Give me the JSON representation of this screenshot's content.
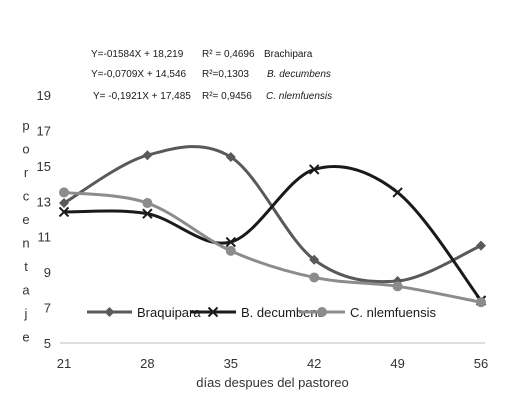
{
  "chart_data": {
    "type": "line",
    "title": "",
    "xlabel": "días despues del pastoreo",
    "ylabel": "porcentaje",
    "x": [
      21,
      28,
      35,
      42,
      49,
      56
    ],
    "ylim": [
      5,
      19
    ],
    "yticks": [
      5,
      7,
      9,
      11,
      13,
      15,
      17,
      19
    ],
    "grid": false,
    "smoothed": true,
    "legend_position": "bottom",
    "series": [
      {
        "name": "Braquipara",
        "values": [
          12.9,
          15.6,
          15.5,
          9.7,
          8.5,
          10.5
        ],
        "color": "#595959",
        "marker": "diamond"
      },
      {
        "name": "B. decumbens",
        "values": [
          12.4,
          12.3,
          10.7,
          14.8,
          13.5,
          7.4
        ],
        "color": "#1a1a1a",
        "marker": "x"
      },
      {
        "name": "C. nlemfuensis",
        "values": [
          13.5,
          12.9,
          10.2,
          8.7,
          8.2,
          7.3
        ],
        "color": "#8c8c8c",
        "marker": "circle"
      }
    ],
    "equations": [
      {
        "equation": "Y=-01584X +  18,219",
        "r2": "R² = 0,4696",
        "label": "Brachipara"
      },
      {
        "equation": "Y=-0,0709X +  14,546",
        "r2": "R²=0,1303",
        "label": "B. decumbens"
      },
      {
        "equation": "Y= -0,1921X + 17,485",
        "r2": "R²= 0,9456",
        "label": "C. nlemfuensis"
      }
    ]
  }
}
